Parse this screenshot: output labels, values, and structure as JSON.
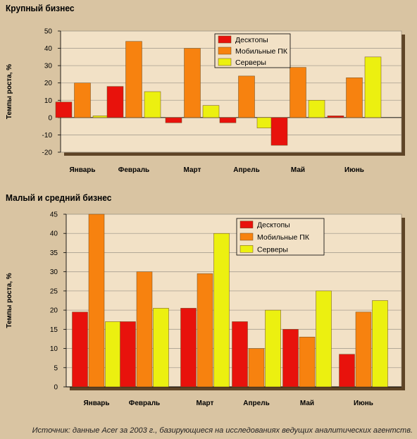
{
  "titles": {
    "top": "Крупный бизнес",
    "bottom": "Малый и средний бизнес"
  },
  "source": "Источник: данные Acer за 2003 г., базирующиеся на исследованиях ведущих аналитических агентств.",
  "colors": {
    "background": "#d9c4a2",
    "plot": "#f2e1c6",
    "shadow": "#5e4426",
    "desktops": "#e8120c",
    "mobile": "#f7820f",
    "servers": "#ecf010"
  },
  "chart_data": [
    {
      "type": "bar",
      "title": "Крупный бизнес",
      "ylabel": "Темпы роста, %",
      "categories": [
        "Январь",
        "Февраль",
        "Март",
        "Апрель",
        "Май",
        "Июнь"
      ],
      "series": [
        {
          "name": "Десктопы",
          "values": [
            9,
            18,
            -3,
            -3,
            -16,
            1
          ]
        },
        {
          "name": "Мобильные ПК",
          "values": [
            20,
            44,
            40,
            24,
            29,
            23
          ]
        },
        {
          "name": "Серверы",
          "values": [
            1,
            15,
            7,
            -6,
            10,
            35
          ]
        }
      ],
      "ylim": [
        -20,
        50
      ],
      "yticks": [
        -20,
        -10,
        0,
        10,
        20,
        30,
        40,
        50
      ],
      "grid": true,
      "legend": "top-right"
    },
    {
      "type": "bar",
      "title": "Малый и средний бизнес",
      "ylabel": "Темпы роста, %",
      "categories": [
        "Январь",
        "Февраль",
        "Март",
        "Апрель",
        "Май",
        "Июнь"
      ],
      "series": [
        {
          "name": "Десктопы",
          "values": [
            19.5,
            17,
            20.5,
            17,
            15,
            8.5
          ]
        },
        {
          "name": "Мобильные ПК",
          "values": [
            45,
            30,
            29.5,
            10,
            13,
            19.5
          ]
        },
        {
          "name": "Серверы",
          "values": [
            17,
            20.5,
            40,
            20,
            25,
            22.5
          ]
        }
      ],
      "ylim": [
        0,
        45
      ],
      "yticks": [
        0,
        5,
        10,
        15,
        20,
        25,
        30,
        35,
        40,
        45
      ],
      "grid": true,
      "legend": "top-right"
    }
  ]
}
